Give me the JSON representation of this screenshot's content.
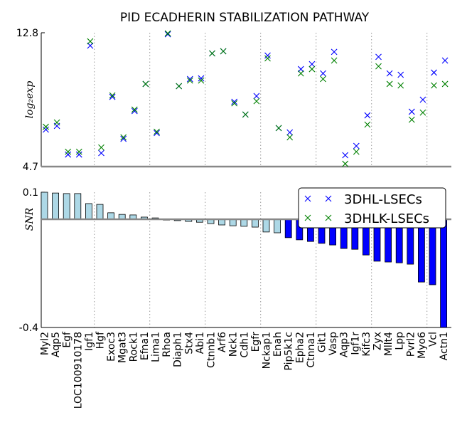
{
  "chart_data": [
    {
      "type": "scatter",
      "title": "PID ECADHERIN STABILIZATION PATHWAY",
      "y_label": "log₂exp",
      "ylim": [
        4.7,
        12.8
      ],
      "yticks": [
        4.7,
        12.8
      ],
      "series": [
        {
          "name": "3DHL-LSECs",
          "color": "#0000ff",
          "values": [
            6.94,
            7.16,
            5.43,
            5.43,
            12.02,
            5.52,
            8.92,
            6.38,
            8.06,
            9.7,
            6.73,
            12.71,
            9.57,
            10.0,
            10.04,
            11.55,
            11.68,
            8.62,
            7.85,
            8.97,
            11.42,
            7.03,
            6.77,
            10.6,
            10.9,
            10.34,
            11.64,
            5.39,
            5.95,
            7.8,
            11.34,
            10.34,
            10.26,
            8.02,
            8.75,
            10.39,
            11.12
          ]
        },
        {
          "name": "3DHLK-LSECs",
          "color": "#008000",
          "values": [
            7.11,
            7.37,
            5.6,
            5.6,
            12.28,
            5.86,
            9.01,
            6.47,
            8.15,
            9.7,
            6.81,
            12.76,
            9.57,
            9.91,
            9.91,
            11.55,
            11.68,
            8.53,
            7.85,
            8.66,
            11.25,
            7.03,
            6.47,
            10.34,
            10.6,
            10.0,
            11.12,
            4.87,
            5.6,
            7.24,
            10.77,
            9.7,
            9.61,
            7.54,
            7.97,
            9.61,
            9.7
          ]
        }
      ]
    },
    {
      "type": "bar",
      "y_label": "SNR",
      "ylim": [
        -0.4,
        0.1
      ],
      "yticks": [
        0.1,
        -0.4
      ],
      "categories": [
        "Myl2",
        "Aqp5",
        "Egf",
        "LOC100910178",
        "Igf1",
        "Hgf",
        "Exoc3",
        "Mgat3",
        "Rock1",
        "Efna1",
        "Lima1",
        "Rhoa",
        "Diaph1",
        "Stx4",
        "Abi1",
        "Ctnnb1",
        "Arf6",
        "Nck1",
        "Cdh1",
        "Egfr",
        "Nckap1",
        "Enah",
        "Pip5k1c",
        "Epha2",
        "Ctnna1",
        "Git1",
        "Vasp",
        "Aqp3",
        "Igf1r",
        "Kifc3",
        "Zyx",
        "Mllt4",
        "Lpp",
        "Pvrl2",
        "Myo6",
        "Vcl",
        "Actn1"
      ],
      "values": [
        0.1,
        0.097,
        0.095,
        0.095,
        0.058,
        0.055,
        0.024,
        0.018,
        0.016,
        0.008,
        0.005,
        -0.003,
        -0.005,
        -0.008,
        -0.011,
        -0.016,
        -0.021,
        -0.024,
        -0.026,
        -0.029,
        -0.047,
        -0.05,
        -0.068,
        -0.076,
        -0.082,
        -0.089,
        -0.095,
        -0.108,
        -0.111,
        -0.132,
        -0.155,
        -0.158,
        -0.161,
        -0.166,
        -0.232,
        -0.242,
        -0.4
      ],
      "colors": [
        "#add8e6",
        "#add8e6",
        "#add8e6",
        "#add8e6",
        "#add8e6",
        "#add8e6",
        "#add8e6",
        "#add8e6",
        "#add8e6",
        "#add8e6",
        "#add8e6",
        "#add8e6",
        "#add8e6",
        "#add8e6",
        "#add8e6",
        "#add8e6",
        "#add8e6",
        "#add8e6",
        "#add8e6",
        "#add8e6",
        "#add8e6",
        "#add8e6",
        "#0000ff",
        "#0000ff",
        "#0000ff",
        "#0000ff",
        "#0000ff",
        "#0000ff",
        "#0000ff",
        "#0000ff",
        "#0000ff",
        "#0000ff",
        "#0000ff",
        "#0000ff",
        "#0000ff",
        "#0000ff",
        "#0000ff"
      ]
    }
  ]
}
